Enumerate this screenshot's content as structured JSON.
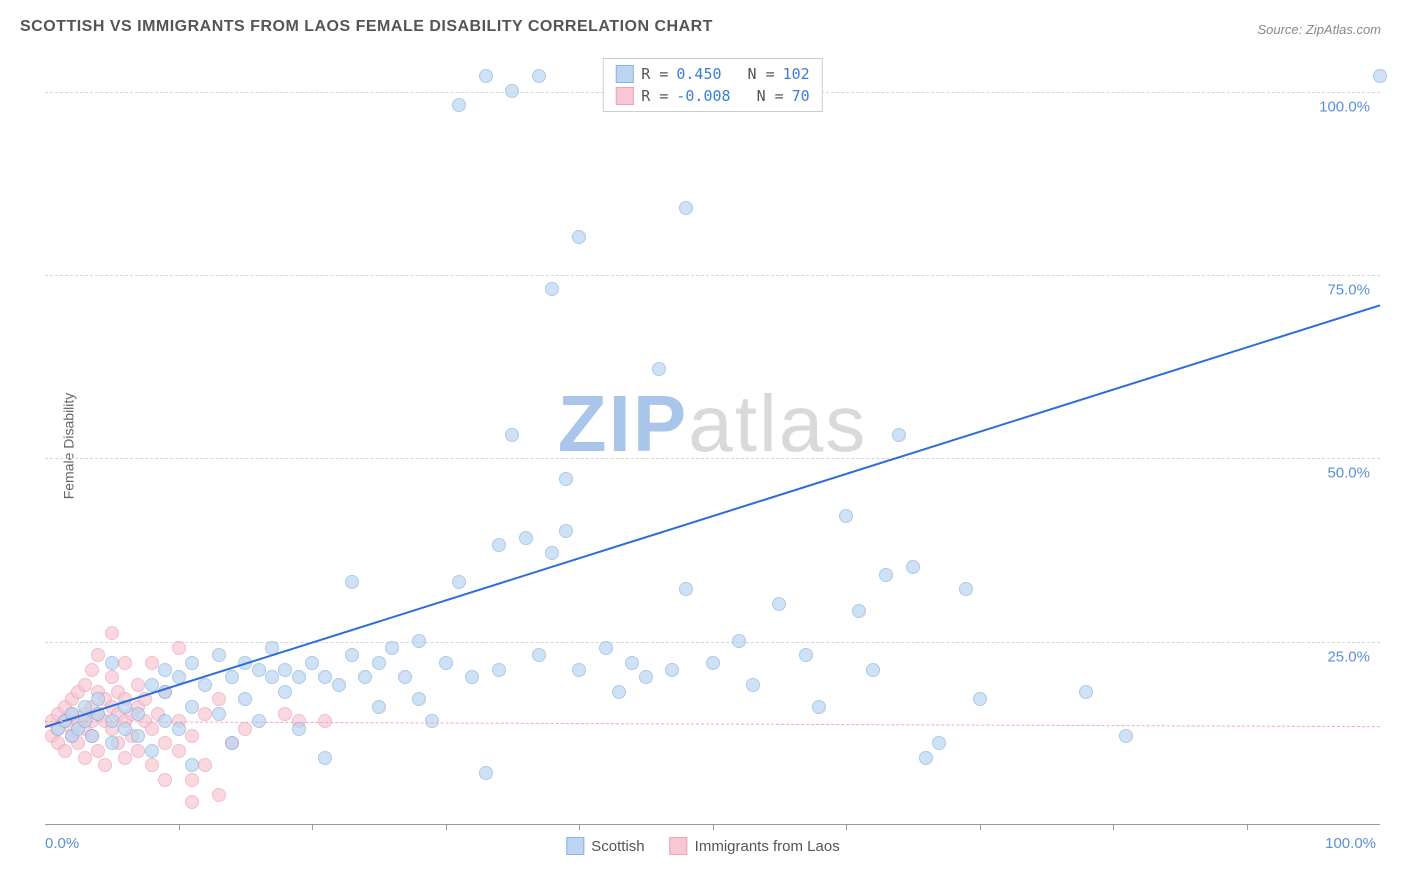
{
  "title": "SCOTTISH VS IMMIGRANTS FROM LAOS FEMALE DISABILITY CORRELATION CHART",
  "source": "Source: ZipAtlas.com",
  "ylabel": "Female Disability",
  "watermark_bold": "ZIP",
  "watermark_light": "atlas",
  "chart": {
    "type": "scatter",
    "xlim": [
      0,
      100
    ],
    "ylim": [
      0,
      105
    ],
    "x_tick_labels": {
      "0": "0.0%",
      "100": "100.0%"
    },
    "x_minor_ticks": [
      10,
      20,
      30,
      40,
      50,
      60,
      70,
      80,
      90
    ],
    "y_gridlines": [
      25,
      50,
      75,
      100
    ],
    "y_tick_labels": {
      "25": "25.0%",
      "50": "50.0%",
      "75": "75.0%",
      "100": "100.0%"
    },
    "grid_color": "#d5d5d5",
    "axis_color": "#999999",
    "label_color": "#5b8fd6",
    "plot_bg": "#ffffff"
  },
  "series": [
    {
      "name": "Scottish",
      "legend_label": "Scottish",
      "color_fill": "#bcd5f0",
      "color_stroke": "#8ab3e0",
      "marker_size": 14,
      "opacity": 0.7,
      "R_label": "R =",
      "R": "0.450",
      "N_label": "N =",
      "N": "102",
      "trend": {
        "x1": 0,
        "y1": 13.5,
        "x2": 100,
        "y2": 71,
        "color": "#2d6cdf",
        "width": 2,
        "style": "solid"
      },
      "points": [
        [
          1,
          13
        ],
        [
          1.5,
          14
        ],
        [
          2,
          12
        ],
        [
          2,
          15
        ],
        [
          2.5,
          13
        ],
        [
          3,
          14
        ],
        [
          3,
          16
        ],
        [
          3.5,
          12
        ],
        [
          4,
          15
        ],
        [
          4,
          17
        ],
        [
          5,
          11
        ],
        [
          5,
          14
        ],
        [
          5,
          22
        ],
        [
          6,
          13
        ],
        [
          6,
          16
        ],
        [
          7,
          12
        ],
        [
          7,
          15
        ],
        [
          8,
          10
        ],
        [
          8,
          19
        ],
        [
          9,
          14
        ],
        [
          9,
          18
        ],
        [
          9,
          21
        ],
        [
          10,
          13
        ],
        [
          10,
          20
        ],
        [
          11,
          16
        ],
        [
          11,
          22
        ],
        [
          11,
          8
        ],
        [
          12,
          19
        ],
        [
          13,
          23
        ],
        [
          13,
          15
        ],
        [
          14,
          20
        ],
        [
          14,
          11
        ],
        [
          15,
          22
        ],
        [
          15,
          17
        ],
        [
          16,
          21
        ],
        [
          16,
          14
        ],
        [
          17,
          20
        ],
        [
          17,
          24
        ],
        [
          18,
          21
        ],
        [
          18,
          18
        ],
        [
          19,
          20
        ],
        [
          19,
          13
        ],
        [
          20,
          22
        ],
        [
          21,
          20
        ],
        [
          21,
          9
        ],
        [
          22,
          19
        ],
        [
          23,
          23
        ],
        [
          23,
          33
        ],
        [
          24,
          20
        ],
        [
          25,
          22
        ],
        [
          25,
          16
        ],
        [
          26,
          24
        ],
        [
          27,
          20
        ],
        [
          28,
          17
        ],
        [
          28,
          25
        ],
        [
          29,
          14
        ],
        [
          30,
          22
        ],
        [
          31,
          33
        ],
        [
          31,
          98
        ],
        [
          32,
          20
        ],
        [
          33,
          102
        ],
        [
          33,
          7
        ],
        [
          34,
          38
        ],
        [
          34,
          21
        ],
        [
          35,
          53
        ],
        [
          35,
          100
        ],
        [
          36,
          39
        ],
        [
          37,
          102
        ],
        [
          37,
          23
        ],
        [
          38,
          73
        ],
        [
          38,
          37
        ],
        [
          39,
          40
        ],
        [
          39,
          47
        ],
        [
          40,
          80
        ],
        [
          40,
          21
        ],
        [
          42,
          24
        ],
        [
          43,
          18
        ],
        [
          44,
          22
        ],
        [
          45,
          20
        ],
        [
          46,
          62
        ],
        [
          47,
          21
        ],
        [
          48,
          32
        ],
        [
          48,
          84
        ],
        [
          50,
          22
        ],
        [
          52,
          25
        ],
        [
          53,
          19
        ],
        [
          55,
          30
        ],
        [
          57,
          23
        ],
        [
          58,
          16
        ],
        [
          60,
          42
        ],
        [
          61,
          29
        ],
        [
          62,
          21
        ],
        [
          63,
          34
        ],
        [
          64,
          53
        ],
        [
          65,
          35
        ],
        [
          66,
          9
        ],
        [
          67,
          11
        ],
        [
          69,
          32
        ],
        [
          70,
          17
        ],
        [
          78,
          18
        ],
        [
          81,
          12
        ],
        [
          100,
          102
        ]
      ]
    },
    {
      "name": "Immigrants from Laos",
      "legend_label": "Immigrants from Laos",
      "color_fill": "#f7c8d3",
      "color_stroke": "#efa1b5",
      "marker_size": 14,
      "opacity": 0.7,
      "R_label": "R =",
      "R": "-0.008",
      "N_label": "N =",
      "N": "70",
      "trend": {
        "x1": 0,
        "y1": 14.2,
        "x2": 100,
        "y2": 13.5,
        "color": "#f4a7b9",
        "width": 1.5,
        "style": "dashed"
      },
      "points": [
        [
          0.5,
          12
        ],
        [
          0.5,
          14
        ],
        [
          1,
          13
        ],
        [
          1,
          15
        ],
        [
          1,
          11
        ],
        [
          1.5,
          14
        ],
        [
          1.5,
          16
        ],
        [
          1.5,
          10
        ],
        [
          2,
          13
        ],
        [
          2,
          15
        ],
        [
          2,
          17
        ],
        [
          2,
          12
        ],
        [
          2.5,
          14
        ],
        [
          2.5,
          18
        ],
        [
          2.5,
          11
        ],
        [
          3,
          15
        ],
        [
          3,
          13
        ],
        [
          3,
          19
        ],
        [
          3,
          9
        ],
        [
          3.5,
          14
        ],
        [
          3.5,
          16
        ],
        [
          3.5,
          21
        ],
        [
          3.5,
          12
        ],
        [
          4,
          15
        ],
        [
          4,
          10
        ],
        [
          4,
          18
        ],
        [
          4,
          23
        ],
        [
          4.5,
          14
        ],
        [
          4.5,
          17
        ],
        [
          4.5,
          8
        ],
        [
          5,
          16
        ],
        [
          5,
          13
        ],
        [
          5,
          20
        ],
        [
          5,
          26
        ],
        [
          5.5,
          15
        ],
        [
          5.5,
          11
        ],
        [
          5.5,
          18
        ],
        [
          6,
          14
        ],
        [
          6,
          17
        ],
        [
          6,
          9
        ],
        [
          6,
          22
        ],
        [
          6.5,
          15
        ],
        [
          6.5,
          12
        ],
        [
          7,
          16
        ],
        [
          7,
          10
        ],
        [
          7,
          19
        ],
        [
          7.5,
          14
        ],
        [
          7.5,
          17
        ],
        [
          8,
          13
        ],
        [
          8,
          8
        ],
        [
          8,
          22
        ],
        [
          8.5,
          15
        ],
        [
          9,
          11
        ],
        [
          9,
          18
        ],
        [
          9,
          6
        ],
        [
          10,
          14
        ],
        [
          10,
          10
        ],
        [
          10,
          24
        ],
        [
          11,
          12
        ],
        [
          11,
          6
        ],
        [
          11,
          3
        ],
        [
          12,
          8
        ],
        [
          12,
          15
        ],
        [
          13,
          4
        ],
        [
          13,
          17
        ],
        [
          14,
          11
        ],
        [
          15,
          13
        ],
        [
          18,
          15
        ],
        [
          19,
          14
        ],
        [
          21,
          14
        ]
      ]
    }
  ]
}
